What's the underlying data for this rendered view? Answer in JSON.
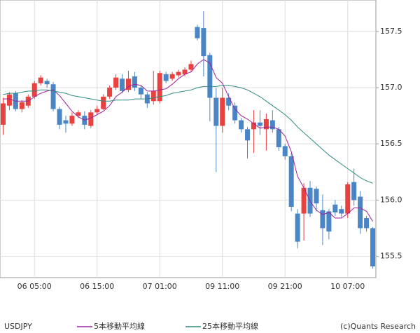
{
  "chart_data": {
    "type": "candlestick",
    "symbol": "USDJPY",
    "copyright": "(c)Quants Research",
    "categories": [
      null,
      null,
      null,
      null,
      null,
      "06 05:00",
      null,
      null,
      null,
      null,
      null,
      null,
      null,
      null,
      null,
      "06 15:00",
      null,
      null,
      null,
      null,
      null,
      null,
      null,
      null,
      null,
      "07 01:00",
      null,
      null,
      null,
      null,
      null,
      null,
      null,
      null,
      null,
      "09 11:00",
      null,
      null,
      null,
      null,
      null,
      null,
      null,
      null,
      null,
      "09 21:00",
      null,
      null,
      null,
      null,
      null,
      null,
      null,
      null,
      null,
      "10 07:00",
      null,
      null,
      null,
      null
    ],
    "open": [
      156.67,
      156.84,
      156.95,
      156.81,
      156.84,
      156.92,
      157.04,
      157.06,
      157.03,
      156.81,
      156.71,
      156.68,
      156.75,
      156.75,
      156.66,
      156.78,
      156.81,
      156.92,
      157.0,
      157.08,
      156.98,
      157.1,
      157.0,
      156.94,
      156.88,
      156.88,
      157.12,
      157.08,
      157.11,
      157.12,
      157.16,
      157.54,
      157.53,
      157.29,
      156.91,
      156.66,
      156.91,
      156.84,
      156.71,
      156.63,
      156.63,
      156.69,
      156.63,
      156.71,
      156.63,
      156.48,
      156.39,
      155.88,
      155.88,
      156.11,
      156.1,
      155.91,
      155.9,
      155.96,
      155.92,
      155.88,
      156.16,
      156.03,
      155.84,
      155.75
    ],
    "high": [
      156.91,
      156.96,
      156.97,
      156.89,
      156.94,
      157.06,
      157.11,
      157.08,
      157.05,
      156.83,
      156.75,
      156.78,
      156.8,
      156.79,
      156.8,
      156.84,
      156.94,
      157.02,
      157.12,
      157.12,
      157.15,
      157.14,
      157.02,
      156.96,
      157.15,
      157.15,
      157.14,
      157.14,
      157.16,
      157.18,
      157.24,
      157.56,
      157.68,
      157.31,
      157.0,
      157.0,
      156.95,
      156.87,
      156.73,
      156.65,
      156.8,
      156.8,
      156.77,
      156.8,
      156.65,
      156.5,
      156.42,
      155.92,
      156.15,
      156.17,
      156.12,
      156.05,
      155.92,
      156.0,
      155.95,
      156.16,
      156.28,
      156.08,
      155.86,
      155.76
    ],
    "low": [
      156.58,
      156.8,
      156.79,
      156.78,
      156.82,
      156.9,
      157.02,
      157.0,
      156.79,
      156.63,
      156.6,
      156.66,
      156.73,
      156.63,
      156.64,
      156.76,
      156.8,
      156.9,
      156.98,
      156.95,
      156.96,
      156.97,
      156.9,
      156.82,
      156.85,
      156.86,
      157.04,
      157.06,
      157.09,
      157.1,
      157.14,
      157.42,
      157.1,
      156.7,
      156.25,
      156.6,
      156.8,
      156.68,
      156.6,
      156.37,
      156.42,
      156.58,
      156.44,
      156.6,
      156.44,
      156.36,
      155.9,
      155.57,
      155.64,
      155.85,
      155.9,
      155.6,
      155.65,
      155.86,
      155.85,
      155.84,
      155.95,
      155.7,
      155.72,
      155.39
    ],
    "close": [
      156.86,
      156.94,
      156.81,
      156.87,
      156.92,
      157.04,
      157.09,
      157.03,
      156.81,
      156.67,
      156.68,
      156.75,
      156.78,
      156.67,
      156.78,
      156.81,
      156.92,
      157.0,
      157.09,
      156.97,
      157.08,
      157.0,
      156.94,
      156.86,
      156.97,
      157.13,
      157.06,
      157.12,
      157.14,
      157.16,
      157.21,
      157.44,
      157.28,
      156.91,
      156.66,
      156.91,
      156.84,
      156.71,
      156.63,
      156.53,
      156.69,
      156.66,
      156.72,
      156.63,
      156.47,
      156.39,
      155.94,
      155.63,
      156.11,
      155.88,
      155.97,
      155.75,
      155.72,
      155.89,
      155.88,
      156.14,
      156.0,
      155.75,
      155.75,
      155.41
    ],
    "up_color": "#e8413f",
    "down_color": "#4a86c5",
    "series": [
      {
        "name": "5本移動平均線",
        "color": "#a020a0",
        "values": [
          156.9,
          156.9,
          156.88,
          156.88,
          156.88,
          156.92,
          156.95,
          156.97,
          156.98,
          156.93,
          156.86,
          156.79,
          156.74,
          156.71,
          156.73,
          156.76,
          156.79,
          156.84,
          156.92,
          156.96,
          157.01,
          157.03,
          157.02,
          156.97,
          156.97,
          156.98,
          156.99,
          157.03,
          157.08,
          157.12,
          157.14,
          157.21,
          157.25,
          157.22,
          157.09,
          157.04,
          156.92,
          156.81,
          156.75,
          156.72,
          156.68,
          156.64,
          156.65,
          156.65,
          156.63,
          156.57,
          156.43,
          156.21,
          156.11,
          155.99,
          155.91,
          155.87,
          155.89,
          155.84,
          155.84,
          155.88,
          155.93,
          155.93,
          155.9,
          155.81
        ]
      },
      {
        "name": "25本移動平均線",
        "color": "#2e8b80",
        "values": [
          156.94,
          156.95,
          156.95,
          156.96,
          156.97,
          156.97,
          156.98,
          156.98,
          156.97,
          156.96,
          156.95,
          156.93,
          156.92,
          156.91,
          156.9,
          156.89,
          156.88,
          156.88,
          156.89,
          156.89,
          156.89,
          156.9,
          156.9,
          156.9,
          156.91,
          156.92,
          156.93,
          156.95,
          156.96,
          156.97,
          156.98,
          157.0,
          157.01,
          157.01,
          157.01,
          157.02,
          157.02,
          157.01,
          157.0,
          156.98,
          156.95,
          156.92,
          156.88,
          156.84,
          156.8,
          156.76,
          156.71,
          156.65,
          156.6,
          156.55,
          156.5,
          156.45,
          156.4,
          156.36,
          156.32,
          156.28,
          156.24,
          156.2,
          156.17,
          156.15
        ]
      }
    ],
    "ylim": [
      155.31,
      157.78
    ],
    "yticks": [
      155.5,
      {
        "value": 156,
        "label": "156.0"
      },
      156.5,
      {
        "value": 157,
        "label": "157.0"
      },
      157.5
    ],
    "grid": true
  }
}
